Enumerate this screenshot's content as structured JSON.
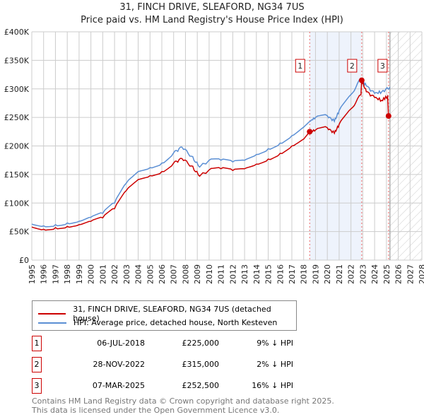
{
  "chart_data": {
    "type": "line",
    "title": "31, FINCH DRIVE, SLEAFORD, NG34 7US",
    "subtitle": "Price paid vs. HM Land Registry's House Price Index (HPI)",
    "xlim": [
      1995,
      2028
    ],
    "ylim": [
      0,
      400000
    ],
    "y_ticks": [
      "£0",
      "£50K",
      "£100K",
      "£150K",
      "£200K",
      "£250K",
      "£300K",
      "£350K",
      "£400K"
    ],
    "x_ticks": [
      "1995",
      "1996",
      "1997",
      "1998",
      "1999",
      "2000",
      "2001",
      "2002",
      "2003",
      "2004",
      "2005",
      "2006",
      "2007",
      "2008",
      "2009",
      "2010",
      "2011",
      "2012",
      "2013",
      "2014",
      "2015",
      "2016",
      "2017",
      "2018",
      "2019",
      "2020",
      "2021",
      "2022",
      "2023",
      "2024",
      "2025",
      "2026",
      "2027",
      "2028"
    ],
    "grid": true,
    "series": [
      {
        "name": "31, FINCH DRIVE, SLEAFORD, NG34 7US (detached house)",
        "color": "#cc0000",
        "x": [
          1995,
          1996,
          1997,
          1998,
          1999,
          2000,
          2001,
          2002,
          2003,
          2004,
          2005,
          2006,
          2007,
          2007.7,
          2008.5,
          2009.2,
          2010,
          2011,
          2012,
          2013,
          2014,
          2015,
          2016,
          2017,
          2018,
          2018.51,
          2019,
          2020,
          2020.6,
          2021,
          2022,
          2022.85,
          2022.91,
          2023.3,
          2024,
          2024.6,
          2025.1,
          2025.18
        ],
        "y": [
          58000,
          54000,
          57000,
          59000,
          62000,
          68000,
          74000,
          90000,
          122000,
          141000,
          148000,
          155000,
          170000,
          178000,
          165000,
          147000,
          158000,
          160000,
          157000,
          160000,
          168000,
          177000,
          187000,
          200000,
          212000,
          225000,
          228000,
          232000,
          222000,
          238000,
          265000,
          290000,
          315000,
          295000,
          285000,
          280000,
          287000,
          252500
        ]
      },
      {
        "name": "HPI: Average price, detached house, North Kesteven",
        "color": "#5b8fd4",
        "x": [
          1995,
          1996,
          1997,
          1998,
          1999,
          2000,
          2001,
          2002,
          2003,
          2004,
          2005,
          2006,
          2007,
          2007.7,
          2008.5,
          2009.2,
          2010,
          2011,
          2012,
          2013,
          2014,
          2015,
          2016,
          2017,
          2018,
          2018.51,
          2019,
          2020,
          2020.6,
          2021,
          2022,
          2022.85,
          2023.3,
          2024,
          2024.6,
          2025.3
        ],
        "y": [
          63000,
          60000,
          62000,
          65000,
          68000,
          75000,
          82000,
          100000,
          135000,
          155000,
          162000,
          170000,
          188000,
          198000,
          182000,
          163000,
          175000,
          175000,
          172000,
          175000,
          185000,
          195000,
          205000,
          218000,
          233000,
          243000,
          250000,
          253000,
          243000,
          262000,
          290000,
          318000,
          305000,
          292000,
          295000,
          303000
        ]
      }
    ],
    "sales": [
      {
        "label": "1",
        "x": 2018.51,
        "y": 225000,
        "date": "06-JUL-2018",
        "price": "£225,000",
        "hpi": "9% ↓ HPI"
      },
      {
        "label": "2",
        "x": 2022.91,
        "y": 315000,
        "date": "28-NOV-2022",
        "price": "£315,000",
        "hpi": "2% ↓ HPI"
      },
      {
        "label": "3",
        "x": 2025.18,
        "y": 252500,
        "date": "07-MAR-2025",
        "price": "£252,500",
        "hpi": "16% ↓ HPI"
      }
    ],
    "shaded_range": [
      2018.51,
      2022.91
    ],
    "hatched_from": 2025.3
  },
  "footer": [
    "Contains HM Land Registry data © Crown copyright and database right 2025.",
    "This data is licensed under the Open Government Licence v3.0."
  ]
}
